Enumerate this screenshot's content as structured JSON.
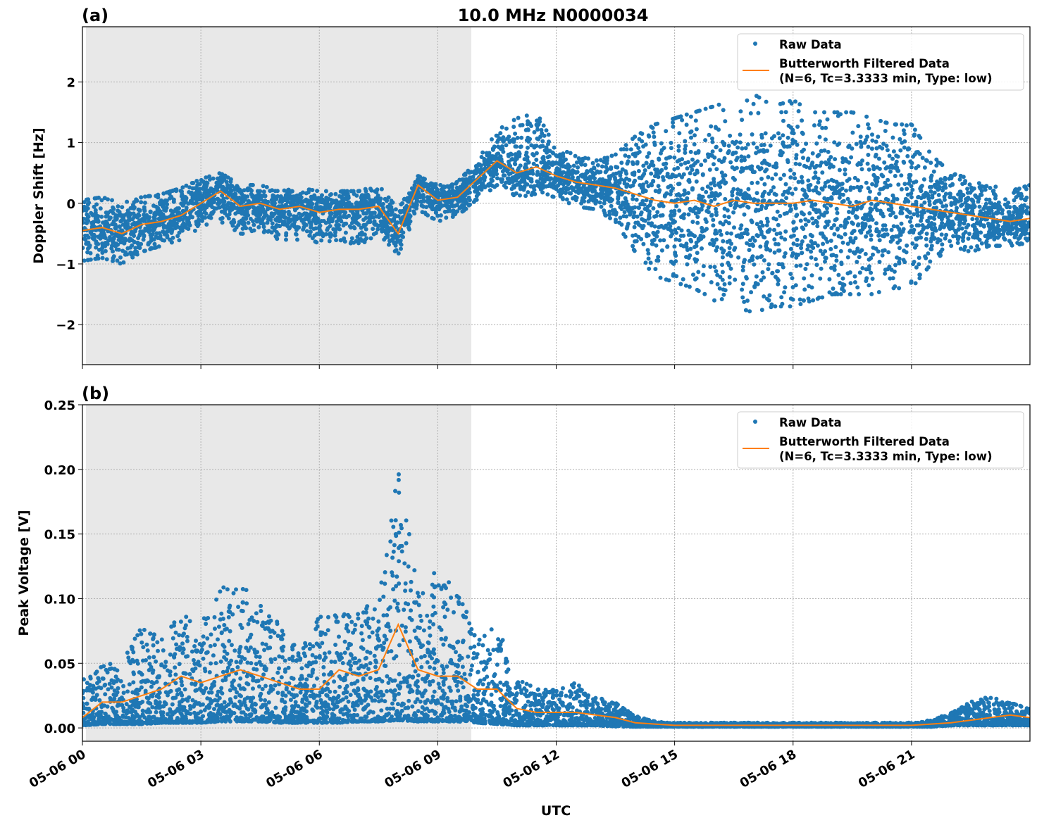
{
  "title": "10.0 MHz N0000034",
  "colors": {
    "raw": "#1f77b4",
    "filtered": "#ff7f0e",
    "shade": "#e8e8e8"
  },
  "x_axis": {
    "label": "UTC",
    "range_hours": [
      0,
      24
    ],
    "ticks": [
      0,
      3,
      6,
      9,
      12,
      15,
      18,
      21
    ],
    "tick_labels": [
      "05-06 00",
      "05-06 03",
      "05-06 06",
      "05-06 09",
      "05-06 12",
      "05-06 15",
      "05-06 18",
      "05-06 21"
    ]
  },
  "legend": {
    "raw": "Raw Data",
    "filtered_line1": "Butterworth Filtered Data",
    "filtered_line2": "(N=6, Tc=3.3333 min, Type: low)",
    "placement": "upper right"
  },
  "chart_data": [
    {
      "type": "scatter+line",
      "panel_label": "(a)",
      "ylabel": "Doppler Shift [Hz]",
      "ylim": [
        -2.66,
        2.91
      ],
      "yticks": [
        -2,
        -1,
        0,
        1,
        2
      ],
      "ytick_labels": [
        "−2",
        "−1",
        "0",
        "1",
        "2"
      ],
      "grid": true,
      "shaded_region_hours": [
        0.09,
        9.85
      ],
      "x_hours": [
        0,
        0.5,
        1,
        1.5,
        2,
        2.5,
        3,
        3.5,
        4,
        4.5,
        5,
        5.5,
        6,
        6.5,
        7,
        7.5,
        8,
        8.5,
        9,
        9.5,
        10,
        10.5,
        11,
        11.5,
        12,
        12.5,
        13,
        13.5,
        14,
        14.5,
        15,
        15.5,
        16,
        16.5,
        17,
        17.5,
        18,
        18.5,
        19,
        19.5,
        20,
        20.5,
        21,
        21.5,
        22,
        22.5,
        23,
        23.5,
        24
      ],
      "series": [
        {
          "name": "Butterworth Filtered Data",
          "values": [
            -0.45,
            -0.4,
            -0.5,
            -0.35,
            -0.3,
            -0.2,
            0.0,
            0.2,
            -0.05,
            0.0,
            -0.1,
            -0.05,
            -0.15,
            -0.1,
            -0.1,
            -0.05,
            -0.5,
            0.3,
            0.05,
            0.1,
            0.4,
            0.7,
            0.5,
            0.6,
            0.45,
            0.35,
            0.3,
            0.25,
            0.15,
            0.05,
            0.0,
            0.05,
            -0.05,
            0.05,
            0.0,
            0.0,
            0.0,
            0.05,
            0.0,
            -0.05,
            0.05,
            0.0,
            -0.05,
            -0.1,
            -0.15,
            -0.2,
            -0.25,
            -0.3,
            -0.25
          ]
        },
        {
          "name": "Raw Data",
          "low": [
            -0.95,
            -0.9,
            -1.0,
            -0.8,
            -0.7,
            -0.6,
            -0.4,
            -0.3,
            -0.5,
            -0.5,
            -0.6,
            -0.6,
            -0.65,
            -0.6,
            -0.7,
            -0.5,
            -0.85,
            -0.1,
            -0.3,
            -0.2,
            0.05,
            0.3,
            0.1,
            0.15,
            0.1,
            -0.05,
            -0.1,
            -0.3,
            -0.8,
            -1.2,
            -1.3,
            -1.4,
            -1.6,
            -1.7,
            -1.8,
            -1.7,
            -1.7,
            -1.6,
            -1.5,
            -1.5,
            -1.5,
            -1.4,
            -1.4,
            -1.0,
            -0.7,
            -0.8,
            -0.7,
            -0.7,
            -0.65
          ],
          "high": [
            0.05,
            0.1,
            0.0,
            0.1,
            0.15,
            0.25,
            0.4,
            0.5,
            0.3,
            0.3,
            0.2,
            0.25,
            0.2,
            0.2,
            0.2,
            0.3,
            -0.1,
            0.45,
            0.3,
            0.35,
            0.7,
            1.2,
            1.4,
            1.5,
            0.9,
            0.8,
            0.7,
            0.8,
            1.1,
            1.3,
            1.4,
            1.5,
            1.6,
            1.7,
            1.8,
            1.6,
            1.7,
            1.5,
            1.5,
            1.5,
            1.4,
            1.3,
            1.3,
            0.8,
            0.5,
            0.4,
            0.3,
            0.2,
            0.3
          ]
        }
      ]
    },
    {
      "type": "scatter+line",
      "panel_label": "(b)",
      "ylabel": "Peak Voltage [V]",
      "ylim": [
        -0.0103,
        0.25
      ],
      "yticks": [
        0,
        0.05,
        0.1,
        0.15,
        0.2,
        0.25
      ],
      "ytick_labels": [
        "0.00",
        "0.05",
        "0.10",
        "0.15",
        "0.20",
        "0.25"
      ],
      "grid": true,
      "shaded_region_hours": [
        0.09,
        9.85
      ],
      "x_hours": [
        0,
        0.5,
        1,
        1.5,
        2,
        2.5,
        3,
        3.5,
        4,
        4.5,
        5,
        5.5,
        6,
        6.5,
        7,
        7.5,
        8,
        8.5,
        9,
        9.5,
        10,
        10.5,
        11,
        11.5,
        12,
        12.5,
        13,
        13.5,
        14,
        14.5,
        15,
        15.5,
        16,
        16.5,
        17,
        17.5,
        18,
        18.5,
        19,
        19.5,
        20,
        20.5,
        21,
        21.5,
        22,
        22.5,
        23,
        23.5,
        24
      ],
      "series": [
        {
          "name": "Butterworth Filtered Data",
          "values": [
            0.008,
            0.02,
            0.02,
            0.025,
            0.03,
            0.04,
            0.035,
            0.04,
            0.045,
            0.04,
            0.035,
            0.03,
            0.03,
            0.045,
            0.04,
            0.045,
            0.08,
            0.045,
            0.04,
            0.04,
            0.03,
            0.03,
            0.015,
            0.012,
            0.012,
            0.012,
            0.01,
            0.008,
            0.004,
            0.003,
            0.002,
            0.002,
            0.002,
            0.002,
            0.002,
            0.002,
            0.002,
            0.002,
            0.002,
            0.002,
            0.002,
            0.002,
            0.002,
            0.003,
            0.004,
            0.006,
            0.008,
            0.01,
            0.008
          ]
        },
        {
          "name": "Raw Data",
          "low": [
            0.002,
            0.003,
            0.003,
            0.003,
            0.004,
            0.004,
            0.004,
            0.005,
            0.005,
            0.005,
            0.004,
            0.004,
            0.004,
            0.004,
            0.005,
            0.005,
            0.006,
            0.005,
            0.005,
            0.005,
            0.004,
            0.003,
            0.002,
            0.002,
            0.002,
            0.002,
            0.002,
            0.001,
            0.001,
            0.001,
            0.001,
            0.001,
            0.001,
            0.001,
            0.001,
            0.001,
            0.001,
            0.001,
            0.001,
            0.001,
            0.001,
            0.001,
            0.001,
            0.001,
            0.002,
            0.002,
            0.002,
            0.002,
            0.002
          ],
          "high": [
            0.04,
            0.05,
            0.05,
            0.08,
            0.07,
            0.09,
            0.08,
            0.11,
            0.11,
            0.1,
            0.08,
            0.06,
            0.09,
            0.09,
            0.09,
            0.1,
            0.2,
            0.12,
            0.12,
            0.11,
            0.07,
            0.08,
            0.04,
            0.03,
            0.03,
            0.035,
            0.025,
            0.02,
            0.01,
            0.005,
            0.004,
            0.004,
            0.004,
            0.004,
            0.004,
            0.004,
            0.004,
            0.004,
            0.004,
            0.004,
            0.004,
            0.004,
            0.004,
            0.006,
            0.012,
            0.02,
            0.025,
            0.02,
            0.015
          ]
        }
      ]
    }
  ]
}
